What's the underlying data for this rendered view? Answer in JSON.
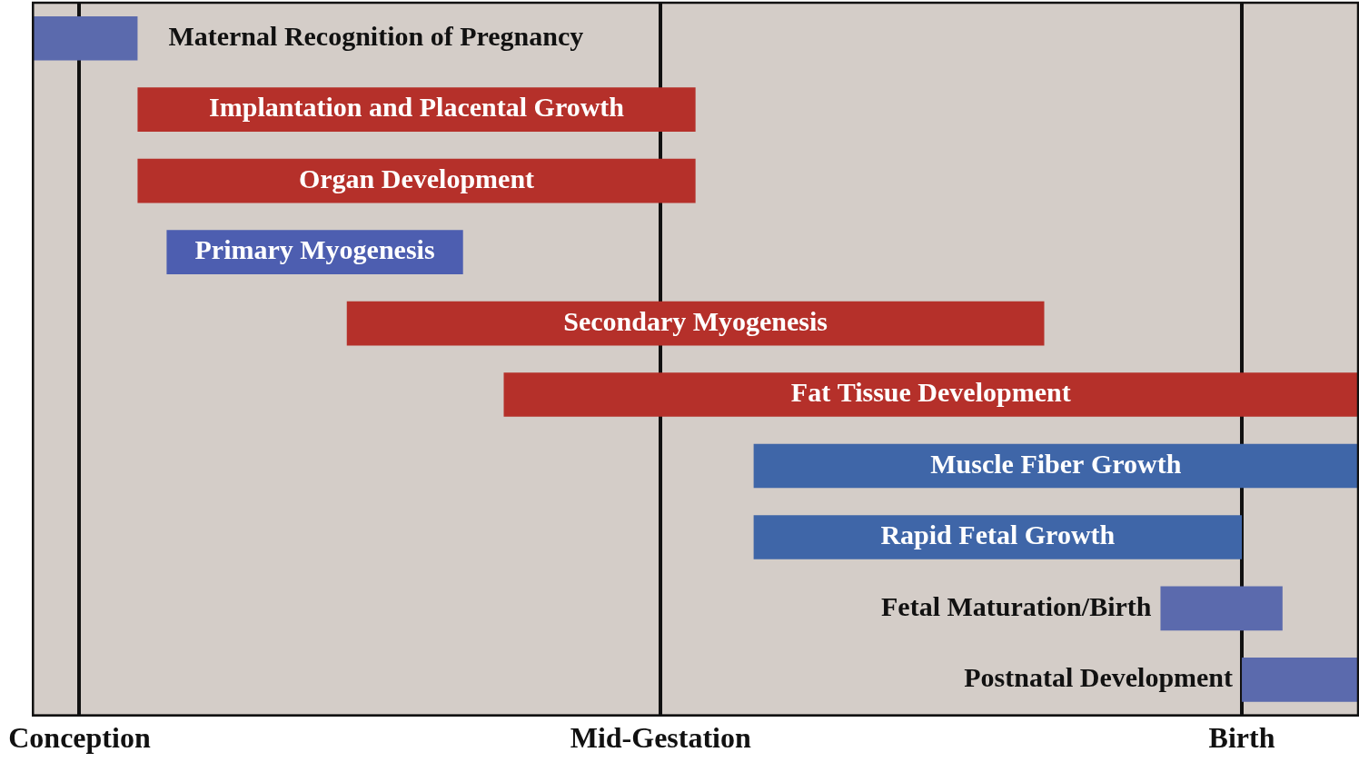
{
  "chart_data": {
    "type": "bar",
    "orientation": "horizontal",
    "categories": [
      "Maternal Recognition of Pregnancy",
      "Implantation and Placental Growth",
      "Organ Development",
      "Primary Myogenesis",
      "Secondary Myogenesis",
      "Fat Tissue Development",
      "Muscle Fiber Growth",
      "Rapid Fetal Growth",
      "Fetal Maturation/Birth",
      "Postnatal Development"
    ],
    "values": [
      [
        -4,
        5
      ],
      [
        5,
        53
      ],
      [
        5,
        53
      ],
      [
        7.5,
        33
      ],
      [
        23,
        83
      ],
      [
        36.5,
        110
      ],
      [
        58,
        110
      ],
      [
        58,
        100
      ],
      [
        93,
        103.5
      ],
      [
        100,
        110
      ]
    ],
    "colors": [
      "#5b6aad",
      "#b5302a",
      "#b5302a",
      "#4d5eb0",
      "#b5302a",
      "#b5302a",
      "#3f66a8",
      "#3f66a8",
      "#5b6aad",
      "#5b6aad"
    ],
    "xlim": [
      -4,
      110
    ],
    "xticks": [
      {
        "value": 0,
        "label": "Conception"
      },
      {
        "value": 50,
        "label": "Mid-Gestation"
      },
      {
        "value": 100,
        "label": "Birth"
      }
    ],
    "grid": true,
    "tick_labels": "x"
  }
}
